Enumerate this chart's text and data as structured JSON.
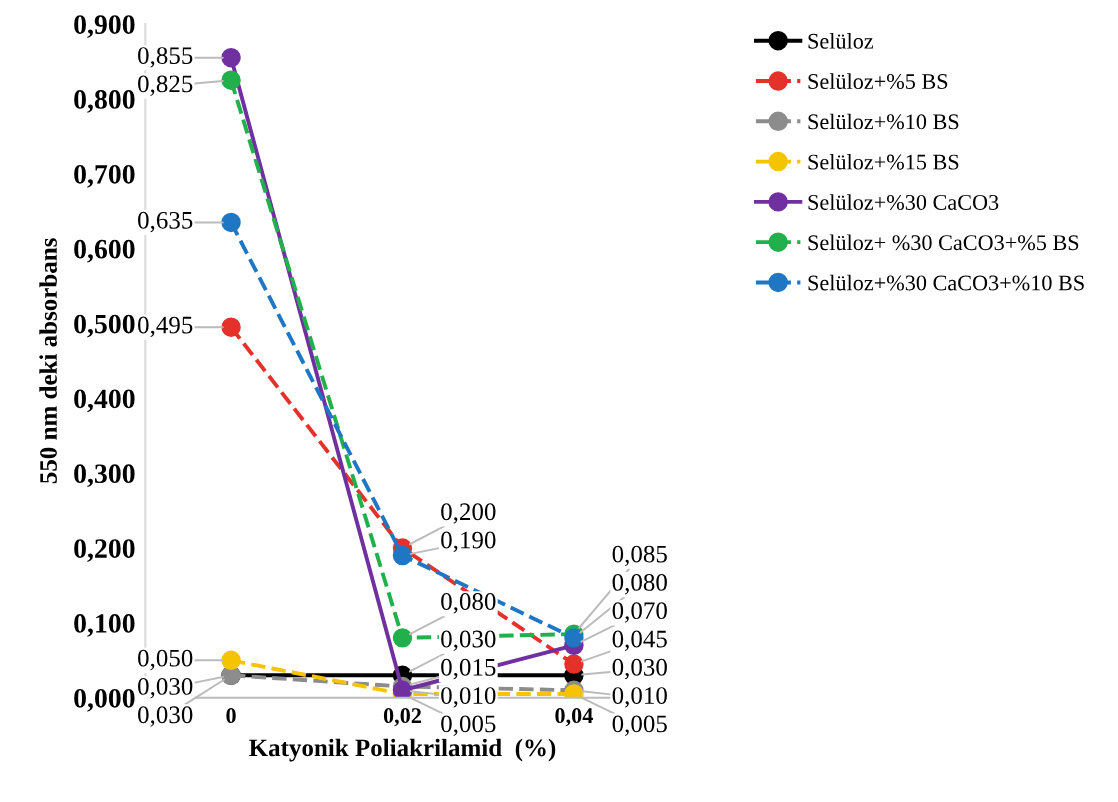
{
  "chart_data": {
    "type": "line",
    "xlabel": "Katyonik Poliakrilamid  (%)",
    "ylabel": "550 nm deki absorbans",
    "categories": [
      "0",
      "0,02",
      "0,04"
    ],
    "ylim": [
      0,
      0.9
    ],
    "yticks": [
      {
        "value": 0,
        "label": "0,000"
      },
      {
        "value": 0.1,
        "label": "0,100"
      },
      {
        "value": 0.2,
        "label": "0,200"
      },
      {
        "value": 0.3,
        "label": "0,300"
      },
      {
        "value": 0.4,
        "label": "0,400"
      },
      {
        "value": 0.5,
        "label": "0,500"
      },
      {
        "value": 0.6,
        "label": "0,600"
      },
      {
        "value": 0.7,
        "label": "0,700"
      },
      {
        "value": 0.8,
        "label": "0,800"
      },
      {
        "value": 0.9,
        "label": "0,900"
      }
    ],
    "grid": false,
    "legend": "right",
    "marker": "circle",
    "series": [
      {
        "name": "Selüloz",
        "color": "#000000",
        "line_style": "solid",
        "values": [
          0.03,
          0.03,
          0.03
        ],
        "value_labels": [
          "0,030",
          "0,030",
          "0,030"
        ]
      },
      {
        "name": "Selüloz+%5 BS",
        "color": "#e4322b",
        "line_style": "dashed",
        "values": [
          0.495,
          0.2,
          0.045
        ],
        "value_labels": [
          "0,495",
          "0,200",
          "0,045"
        ]
      },
      {
        "name": "Selüloz+%10 BS",
        "color": "#8c8c8c",
        "line_style": "dashed",
        "values": [
          0.03,
          0.015,
          0.01
        ],
        "value_labels": [
          "0,030",
          "0,015",
          "0,010"
        ]
      },
      {
        "name": "Selüloz+%15 BS",
        "color": "#f5c400",
        "line_style": "dashed",
        "values": [
          0.05,
          0.005,
          0.005
        ],
        "value_labels": [
          "0,050",
          "0,005",
          "0,005"
        ]
      },
      {
        "name": "Selüloz+%30 CaCO3",
        "color": "#7030a0",
        "line_style": "solid",
        "values": [
          0.855,
          0.01,
          0.07
        ],
        "value_labels": [
          "0,855",
          "0,010",
          "0,070"
        ]
      },
      {
        "name": "Selüloz+ %30 CaCO3+%5 BS",
        "color": "#21b04b",
        "line_style": "dashed",
        "values": [
          0.825,
          0.08,
          0.085
        ],
        "value_labels": [
          "0,825",
          "0,080",
          "0,085"
        ]
      },
      {
        "name": "Selüloz+%30 CaCO3+%10 BS",
        "color": "#1f77c4",
        "line_style": "dashed",
        "values": [
          0.635,
          0.19,
          0.08
        ],
        "value_labels": [
          "0,635",
          "0,190",
          "0,080"
        ]
      }
    ]
  }
}
